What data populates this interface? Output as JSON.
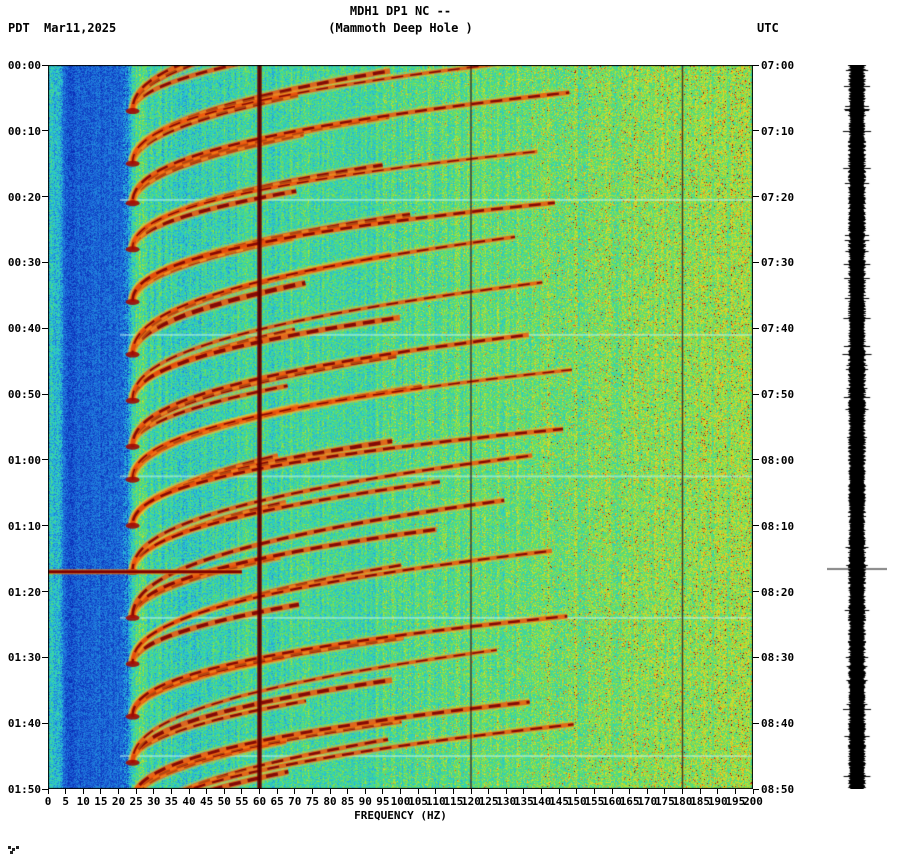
{
  "header": {
    "station_title": "MDH1 DP1 NC --",
    "station_subtitle": "(Mammoth Deep Hole )",
    "timezone_left": "PDT",
    "date": "Mar11,2025",
    "timezone_right": "UTC"
  },
  "chart_data": {
    "type": "heatmap",
    "title": "MDH1 DP1 NC -- (Mammoth Deep Hole )",
    "xlabel": "FREQUENCY (HZ)",
    "xlim": [
      0,
      200
    ],
    "x_ticks": [
      0,
      5,
      10,
      15,
      20,
      25,
      30,
      35,
      40,
      45,
      50,
      55,
      60,
      65,
      70,
      75,
      80,
      85,
      90,
      95,
      100,
      105,
      110,
      115,
      120,
      125,
      130,
      135,
      140,
      145,
      150,
      155,
      160,
      165,
      170,
      175,
      180,
      185,
      190,
      195,
      200
    ],
    "time_axis": {
      "left_timezone": "PDT",
      "right_timezone": "UTC",
      "duration_min": 110,
      "tick_interval_min": 10,
      "left_ticks": [
        "00:00",
        "00:10",
        "00:20",
        "00:30",
        "00:40",
        "00:50",
        "01:00",
        "01:10",
        "01:20",
        "01:30",
        "01:40",
        "01:50"
      ],
      "right_ticks": [
        "07:00",
        "07:10",
        "07:20",
        "07:30",
        "07:40",
        "07:50",
        "08:00",
        "08:10",
        "08:20",
        "08:30",
        "08:40",
        "08:50"
      ]
    },
    "palette_stops": [
      [
        0.0,
        0,
        0,
        100
      ],
      [
        0.12,
        10,
        40,
        180
      ],
      [
        0.25,
        30,
        110,
        220
      ],
      [
        0.38,
        40,
        180,
        220
      ],
      [
        0.48,
        50,
        215,
        180
      ],
      [
        0.58,
        90,
        220,
        110
      ],
      [
        0.68,
        160,
        225,
        60
      ],
      [
        0.76,
        225,
        220,
        40
      ],
      [
        0.84,
        250,
        170,
        30
      ],
      [
        0.92,
        235,
        80,
        25
      ],
      [
        1.0,
        130,
        10,
        10
      ]
    ],
    "features": {
      "quiet_band_hz": [
        3,
        21
      ],
      "powerline_hz": 60,
      "powerline_harmonics_hz": [
        120,
        180
      ],
      "arc_base_hz": 24,
      "arc_harmonics": [
        {
          "A": 44,
          "B": 10,
          "p": 2.0,
          "w": 4
        },
        {
          "A": 80,
          "B": 13.5,
          "p": 2.15,
          "w": 4
        },
        {
          "A": 116,
          "B": 16.5,
          "p": 2.3,
          "w": 3
        }
      ],
      "event_times_min": [
        7,
        15,
        21,
        28,
        36,
        44,
        51,
        58,
        63,
        70,
        77,
        84,
        91,
        99,
        106,
        112,
        117
      ],
      "pale_streak_times_min": [
        20.5,
        41,
        62.5,
        84,
        105
      ],
      "red_streak_time_min": 77,
      "red_streak_max_hz": 55,
      "marker_time_min": 76.5
    }
  }
}
